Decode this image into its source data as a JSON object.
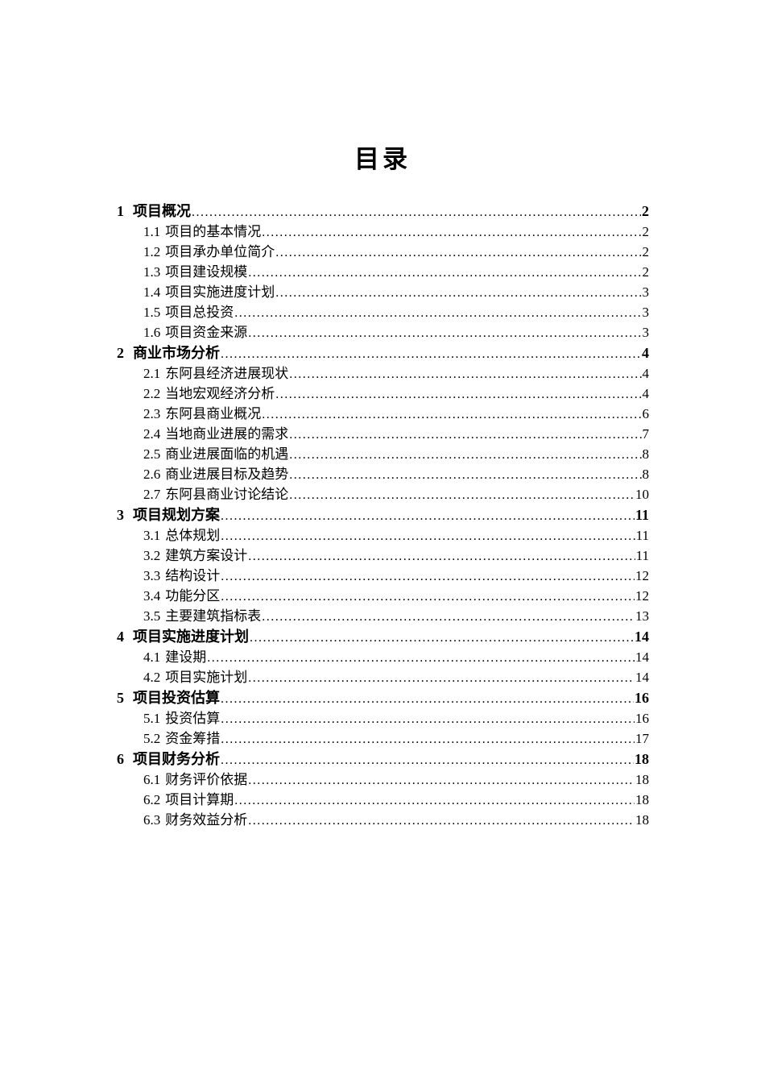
{
  "page": {
    "title": "目录"
  },
  "toc": {
    "entries": [
      {
        "level": 1,
        "num": "1",
        "label": "项目概况",
        "page": "2"
      },
      {
        "level": 2,
        "num": "1.1",
        "label": "项目的基本情况",
        "page": "2"
      },
      {
        "level": 2,
        "num": "1.2",
        "label": "项目承办单位简介",
        "page": "2"
      },
      {
        "level": 2,
        "num": "1.3",
        "label": "项目建设规模",
        "page": "2"
      },
      {
        "level": 2,
        "num": "1.4",
        "label": "项目实施进度计划",
        "page": "3"
      },
      {
        "level": 2,
        "num": "1.5",
        "label": "项目总投资",
        "page": "3"
      },
      {
        "level": 2,
        "num": "1.6",
        "label": "项目资金来源",
        "page": "3"
      },
      {
        "level": 1,
        "num": "2",
        "label": "商业市场分析",
        "page": "4"
      },
      {
        "level": 2,
        "num": "2.1",
        "label": "东阿县经济进展现状",
        "page": "4"
      },
      {
        "level": 2,
        "num": "2.2",
        "label": "当地宏观经济分析",
        "page": "4"
      },
      {
        "level": 2,
        "num": "2.3",
        "label": "东阿县商业概况",
        "page": "6"
      },
      {
        "level": 2,
        "num": "2.4",
        "label": "当地商业进展的需求",
        "page": "7"
      },
      {
        "level": 2,
        "num": "2.5",
        "label": "商业进展面临的机遇",
        "page": "8"
      },
      {
        "level": 2,
        "num": "2.6",
        "label": "商业进展目标及趋势",
        "page": "8"
      },
      {
        "level": 2,
        "num": "2.7",
        "label": "东阿县商业讨论结论",
        "page": "10"
      },
      {
        "level": 1,
        "num": "3",
        "label": "项目规划方案",
        "page": "11"
      },
      {
        "level": 2,
        "num": "3.1",
        "label": "总体规划",
        "page": "11"
      },
      {
        "level": 2,
        "num": "3.2",
        "label": "建筑方案设计",
        "page": "11"
      },
      {
        "level": 2,
        "num": "3.3",
        "label": "结构设计",
        "page": "12"
      },
      {
        "level": 2,
        "num": "3.4",
        "label": "功能分区",
        "page": "12"
      },
      {
        "level": 2,
        "num": "3.5",
        "label": "主要建筑指标表",
        "page": "13"
      },
      {
        "level": 1,
        "num": "4",
        "label": "项目实施进度计划",
        "page": "14"
      },
      {
        "level": 2,
        "num": "4.1",
        "label": "建设期",
        "page": "14"
      },
      {
        "level": 2,
        "num": "4.2",
        "label": "项目实施计划",
        "page": "14"
      },
      {
        "level": 1,
        "num": "5",
        "label": "项目投资估算",
        "page": "16"
      },
      {
        "level": 2,
        "num": "5.1",
        "label": "投资估算",
        "page": "16"
      },
      {
        "level": 2,
        "num": "5.2",
        "label": "资金筹措",
        "page": "17"
      },
      {
        "level": 1,
        "num": "6",
        "label": "项目财务分析",
        "page": "18"
      },
      {
        "level": 2,
        "num": "6.1",
        "label": "财务评价依据",
        "page": "18"
      },
      {
        "level": 2,
        "num": "6.2",
        "label": "项目计算期",
        "page": "18"
      },
      {
        "level": 2,
        "num": "6.3",
        "label": "财务效益分析",
        "page": "18"
      }
    ]
  }
}
